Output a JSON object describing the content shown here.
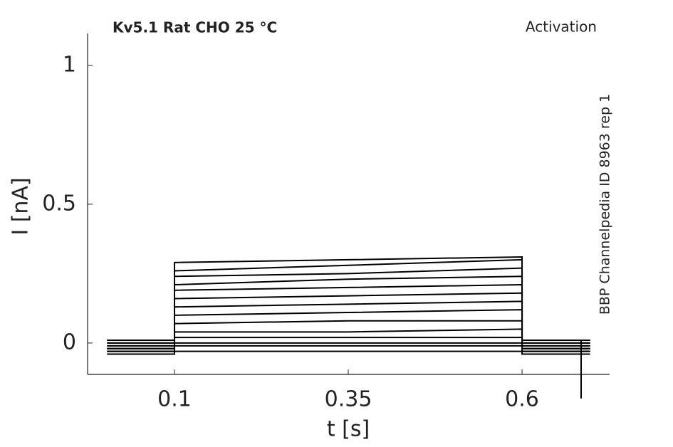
{
  "chart_data": {
    "type": "line",
    "title": "Kv5.1  Rat  CHO  25 °C",
    "annotation": "Activation",
    "side_label": "BBP Channelpedia ID 8963 rep 1",
    "x_label": "t [s]",
    "y_label": "I [nA]",
    "x": [
      0.003,
      0.1,
      0.1,
      0.35,
      0.6,
      0.6,
      0.685,
      0.685,
      0.698
    ],
    "series": [
      {
        "color": "#000000",
        "values": [
          0.01,
          0.01,
          0.29,
          0.3,
          0.31,
          0.01,
          0.01,
          -0.2,
          null
        ]
      },
      {
        "color": "#000000",
        "values": [
          -0.03,
          -0.03,
          0.26,
          0.28,
          0.3,
          -0.03,
          -0.03,
          -0.03,
          -0.03
        ]
      },
      {
        "color": "#000000",
        "values": [
          -0.02,
          -0.02,
          0.24,
          0.25,
          0.27,
          -0.02,
          -0.02,
          -0.02,
          -0.02
        ]
      },
      {
        "color": "#000000",
        "values": [
          0.0,
          0.0,
          0.21,
          0.23,
          0.24,
          0.0,
          0.0,
          0.0,
          0.0
        ]
      },
      {
        "color": "#000000",
        "values": [
          -0.01,
          -0.01,
          0.19,
          0.2,
          0.21,
          -0.01,
          -0.01,
          -0.01,
          -0.01
        ]
      },
      {
        "color": "#000000",
        "values": [
          0.01,
          0.01,
          0.16,
          0.17,
          0.18,
          0.01,
          0.01,
          0.01,
          0.01
        ]
      },
      {
        "color": "#000000",
        "values": [
          -0.02,
          -0.02,
          0.13,
          0.14,
          0.15,
          -0.02,
          -0.02,
          -0.02,
          -0.02
        ]
      },
      {
        "color": "#000000",
        "values": [
          0.0,
          0.0,
          0.1,
          0.11,
          0.12,
          0.0,
          0.0,
          0.0,
          0.0
        ]
      },
      {
        "color": "#000000",
        "values": [
          -0.03,
          -0.03,
          0.07,
          0.08,
          0.08,
          -0.03,
          -0.03,
          -0.03,
          -0.03
        ]
      },
      {
        "color": "#000000",
        "values": [
          0.01,
          0.01,
          0.04,
          0.04,
          0.05,
          0.01,
          0.01,
          0.01,
          0.01
        ]
      },
      {
        "color": "#000000",
        "values": [
          -0.01,
          -0.01,
          0.02,
          0.02,
          0.02,
          -0.01,
          -0.01,
          -0.01,
          -0.01
        ]
      },
      {
        "color": "#000000",
        "values": [
          -0.02,
          -0.02,
          0.0,
          0.0,
          0.0,
          -0.02,
          -0.02,
          -0.02,
          -0.02
        ]
      },
      {
        "color": "#000000",
        "values": [
          -0.03,
          -0.03,
          -0.01,
          -0.01,
          -0.01,
          -0.03,
          -0.03,
          -0.03,
          -0.03
        ]
      },
      {
        "color": "#000000",
        "values": [
          -0.04,
          -0.04,
          -0.03,
          -0.03,
          -0.03,
          -0.04,
          -0.04,
          -0.04,
          -0.04
        ]
      }
    ],
    "xlim": [
      -0.025,
      0.726
    ],
    "ylim": [
      -0.113,
      1.115
    ],
    "xticks": [
      0.1,
      0.35,
      0.6
    ],
    "yticks": [
      0,
      0.5,
      1
    ]
  }
}
